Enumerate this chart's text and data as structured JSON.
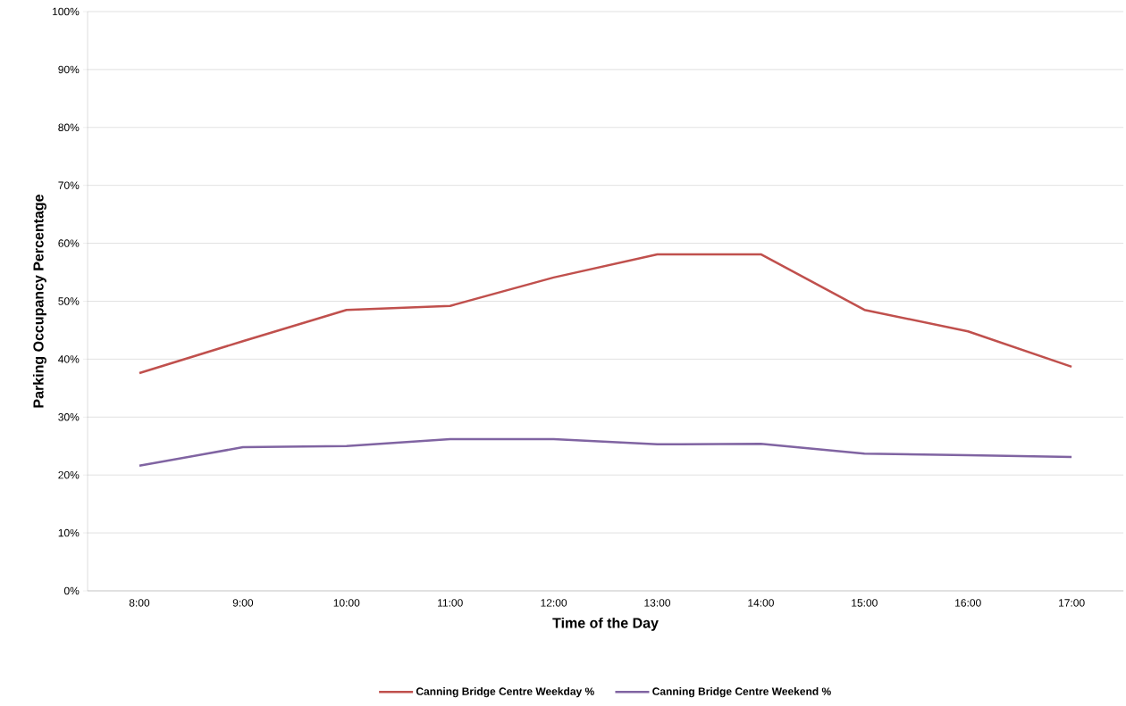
{
  "chart_data": {
    "type": "line",
    "xlabel": "Time of the Day",
    "ylabel": "Parking Occupancy Percentage",
    "categories": [
      "8:00",
      "9:00",
      "10:00",
      "11:00",
      "12:00",
      "13:00",
      "14:00",
      "15:00",
      "16:00",
      "17:00"
    ],
    "series": [
      {
        "name": "Canning Bridge Centre Weekday %",
        "color": "#c0504d",
        "values": [
          37.6,
          43.1,
          48.5,
          49.2,
          54.1,
          58.1,
          58.1,
          48.5,
          44.8,
          38.7
        ]
      },
      {
        "name": "Canning Bridge Centre  Weekend %",
        "color": "#8064a2",
        "values": [
          21.6,
          24.8,
          25.0,
          26.2,
          26.2,
          25.3,
          25.4,
          23.7,
          23.4,
          23.1
        ]
      }
    ],
    "ylim": [
      0,
      100
    ],
    "yticks": [
      {
        "value": 0,
        "label": "0%"
      },
      {
        "value": 10,
        "label": "10%"
      },
      {
        "value": 20,
        "label": "20%"
      },
      {
        "value": 30,
        "label": "30%"
      },
      {
        "value": 40,
        "label": "40%"
      },
      {
        "value": 50,
        "label": "50%"
      },
      {
        "value": 60,
        "label": "60%"
      },
      {
        "value": 70,
        "label": "70%"
      },
      {
        "value": 80,
        "label": "80%"
      },
      {
        "value": 90,
        "label": "90%"
      },
      {
        "value": 100,
        "label": "100%"
      }
    ],
    "grid": "y",
    "legend": "bottom",
    "marker": "none",
    "line_style": "solid"
  }
}
